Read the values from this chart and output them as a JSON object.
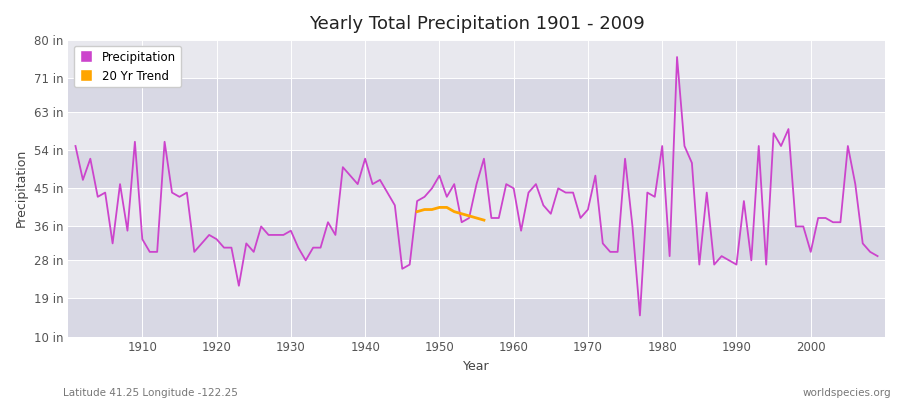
{
  "title": "Yearly Total Precipitation 1901 - 2009",
  "xlabel": "Year",
  "ylabel": "Precipitation",
  "bottom_left_label": "Latitude 41.25 Longitude -122.25",
  "bottom_right_label": "worldspecies.org",
  "ytick_labels": [
    "10 in",
    "19 in",
    "28 in",
    "36 in",
    "45 in",
    "54 in",
    "63 in",
    "71 in",
    "80 in"
  ],
  "ytick_values": [
    10,
    19,
    28,
    36,
    45,
    54,
    63,
    71,
    80
  ],
  "ylim": [
    10,
    80
  ],
  "xlim": [
    1900,
    2010
  ],
  "precipitation_color": "#CC44CC",
  "trend_color": "#FFA500",
  "plot_bg_color": "#E8E8EE",
  "grid_color": "#FFFFFF",
  "fig_bg_color": "#FFFFFF",
  "years": [
    1901,
    1902,
    1903,
    1904,
    1905,
    1906,
    1907,
    1908,
    1909,
    1910,
    1911,
    1912,
    1913,
    1914,
    1915,
    1916,
    1917,
    1918,
    1919,
    1920,
    1921,
    1922,
    1923,
    1924,
    1925,
    1926,
    1927,
    1928,
    1929,
    1930,
    1931,
    1932,
    1933,
    1934,
    1935,
    1936,
    1937,
    1938,
    1939,
    1940,
    1941,
    1942,
    1943,
    1944,
    1945,
    1946,
    1947,
    1948,
    1949,
    1950,
    1951,
    1952,
    1953,
    1954,
    1955,
    1956,
    1957,
    1958,
    1959,
    1960,
    1961,
    1962,
    1963,
    1964,
    1965,
    1966,
    1967,
    1968,
    1969,
    1970,
    1971,
    1972,
    1973,
    1974,
    1975,
    1976,
    1977,
    1978,
    1979,
    1980,
    1981,
    1982,
    1983,
    1984,
    1985,
    1986,
    1987,
    1988,
    1989,
    1990,
    1991,
    1992,
    1993,
    1994,
    1995,
    1996,
    1997,
    1998,
    1999,
    2000,
    2001,
    2002,
    2003,
    2004,
    2005,
    2006,
    2007,
    2008,
    2009
  ],
  "precip": [
    55,
    47,
    52,
    43,
    44,
    32,
    46,
    35,
    56,
    33,
    30,
    30,
    56,
    44,
    43,
    44,
    30,
    32,
    34,
    33,
    31,
    31,
    22,
    32,
    30,
    36,
    34,
    34,
    34,
    35,
    31,
    28,
    31,
    31,
    37,
    34,
    50,
    48,
    46,
    52,
    46,
    47,
    44,
    41,
    26,
    27,
    42,
    43,
    45,
    48,
    43,
    46,
    37,
    38,
    46,
    52,
    38,
    38,
    46,
    45,
    35,
    44,
    46,
    41,
    39,
    45,
    44,
    44,
    38,
    40,
    48,
    32,
    30,
    30,
    52,
    36,
    15,
    44,
    43,
    55,
    29,
    76,
    55,
    51,
    27,
    44,
    27,
    29,
    28,
    27,
    42,
    28,
    55,
    27,
    58,
    55,
    59,
    36,
    36,
    30,
    38,
    38,
    37,
    37,
    55,
    46,
    32,
    30,
    29
  ],
  "trend_years": [
    1947,
    1948,
    1949,
    1950,
    1951,
    1952,
    1953,
    1954,
    1955,
    1956
  ],
  "trend_values": [
    39.5,
    40.0,
    40.0,
    40.5,
    40.5,
    39.5,
    39.0,
    38.5,
    38.0,
    37.5
  ],
  "xticks": [
    1910,
    1920,
    1930,
    1940,
    1950,
    1960,
    1970,
    1980,
    1990,
    2000
  ]
}
